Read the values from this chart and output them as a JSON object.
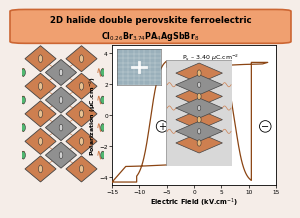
{
  "title_line1": "2D halide double perovskite ferroelectric",
  "title_line2": "Cl$_{0.26}$Br$_{3.74}$PA$_4$AgSbBr$_8$",
  "title_bg_color": "#f0a070",
  "title_border_color": "#cc6633",
  "hysteresis_color": "#8B4513",
  "xlabel": "Electric Field (kV.cm$^{-1}$)",
  "ylabel": "Polarization (μC.cm$^{-2}$)",
  "xlim": [
    -15,
    15
  ],
  "ylim": [
    -4.5,
    4.5
  ],
  "xticks": [
    -15,
    -10,
    -5,
    0,
    5,
    10,
    15
  ],
  "yticks": [
    -4,
    -2,
    0,
    2,
    4
  ],
  "annotation": "P$_s$ – 3.40 μC.cm$^{-2}$",
  "bg_outer": "#f5ede8",
  "copper": "#cd7f50",
  "gray_oct": "#909090",
  "green_atom": "#50b870"
}
